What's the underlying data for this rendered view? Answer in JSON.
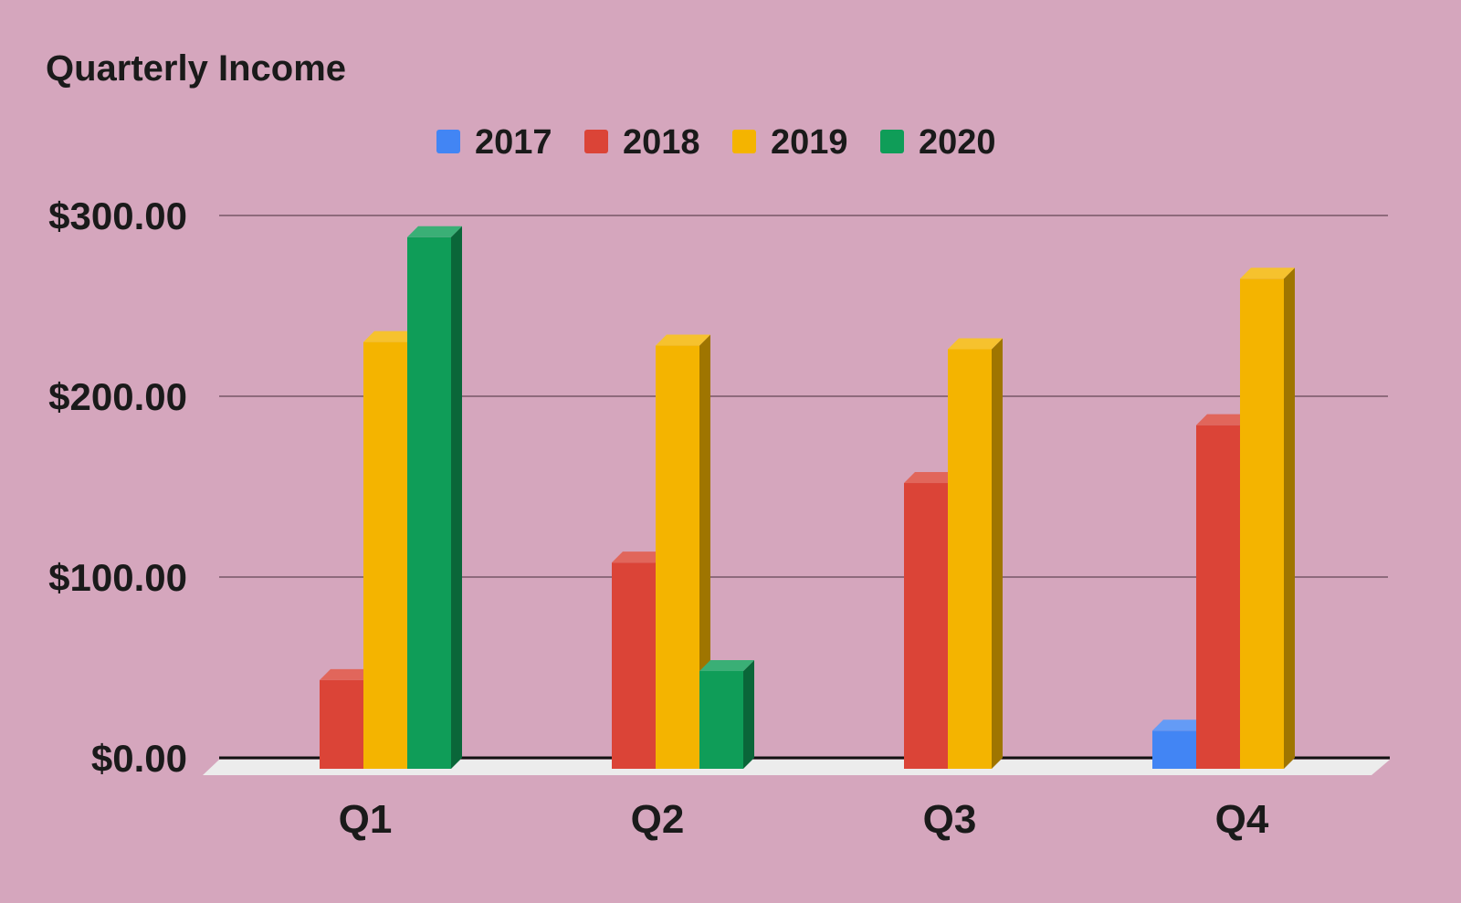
{
  "chart_data": {
    "type": "bar",
    "title": "Quarterly Income",
    "xlabel": "",
    "ylabel": "",
    "categories": [
      "Q1",
      "Q2",
      "Q3",
      "Q4"
    ],
    "series": [
      {
        "name": "2017",
        "color": "#4285f4",
        "values": [
          0,
          0,
          0,
          15
        ]
      },
      {
        "name": "2018",
        "color": "#db4437",
        "values": [
          43,
          108,
          152,
          184
        ]
      },
      {
        "name": "2019",
        "color": "#f4b400",
        "values": [
          230,
          228,
          226,
          265
        ]
      },
      {
        "name": "2020",
        "color": "#0f9d58",
        "values": [
          288,
          48,
          0,
          0
        ]
      }
    ],
    "ylim": [
      0,
      300
    ],
    "y_ticks": [
      "$0.00",
      "$100.00",
      "$200.00",
      "$300.00"
    ],
    "y_tick_values": [
      0,
      100,
      200,
      300
    ],
    "grid": true,
    "legend_position": "top",
    "style": "3d"
  }
}
